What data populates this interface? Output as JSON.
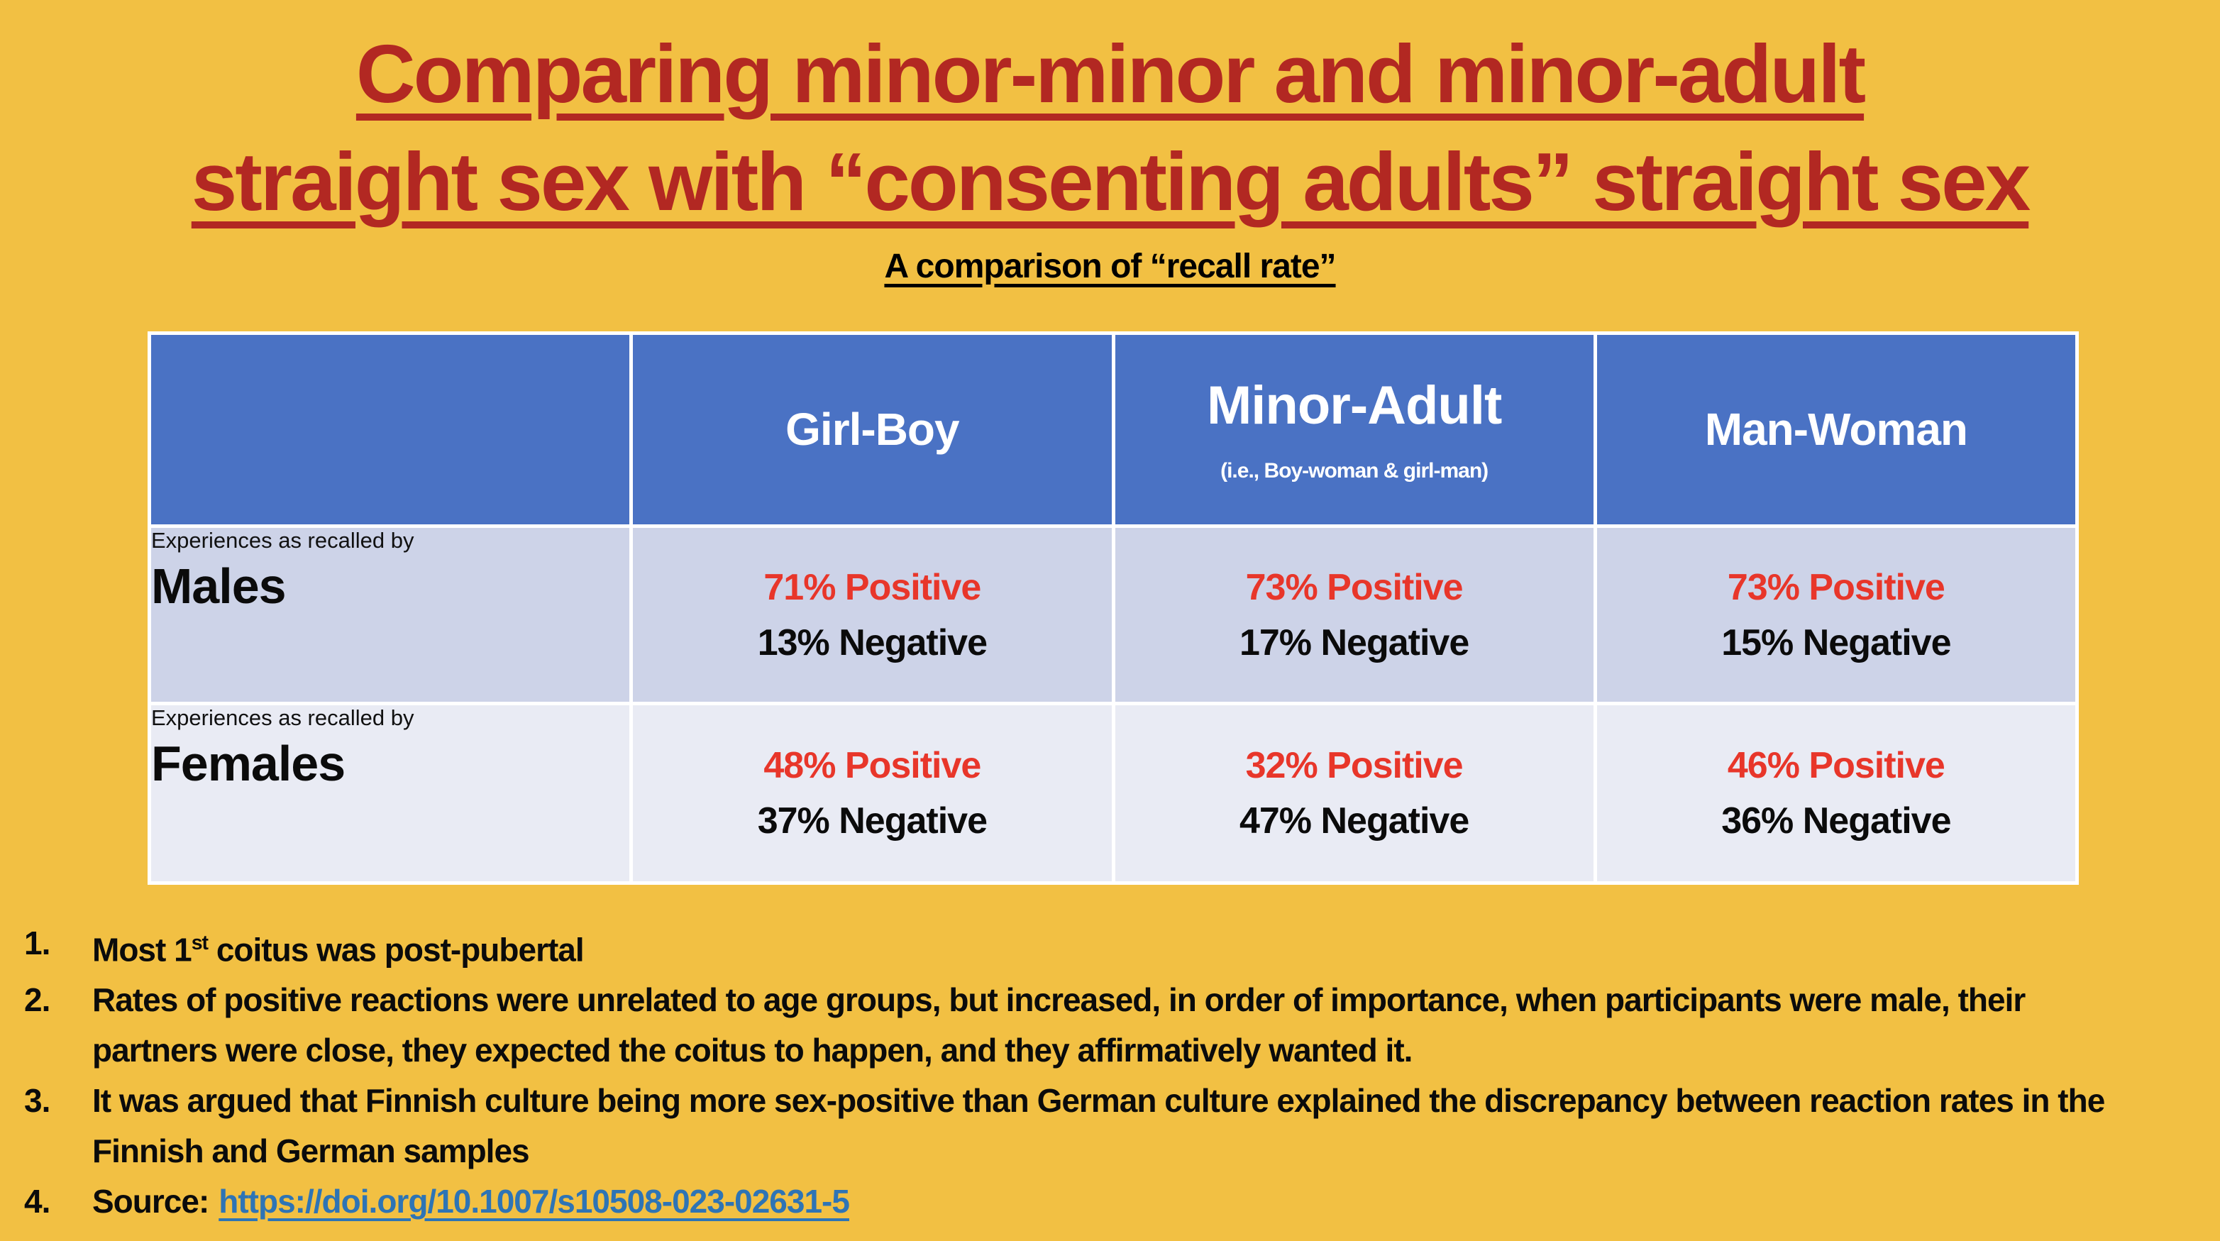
{
  "slide": {
    "title_line1": "Comparing minor-minor and minor-adult",
    "title_line2": "straight sex with “consenting adults” straight sex",
    "subtitle": "A comparison of “recall rate”",
    "colors": {
      "background": "#F2C043",
      "title_red": "#B22822",
      "header_blue": "#4A72C4",
      "row_males_bg": "#CDD3E8",
      "row_females_bg": "#E9EBF4",
      "positive_red": "#E8362A",
      "negative_black": "#0B0B0B",
      "link_blue": "#2E74B5",
      "table_border_white": "#FFFFFF"
    }
  },
  "table": {
    "columns": [
      {
        "label": "",
        "sub": ""
      },
      {
        "label": "Girl-Boy",
        "sub": ""
      },
      {
        "label": "Minor-Adult",
        "sub": "(i.e., Boy-woman & girl-man)"
      },
      {
        "label": "Man-Woman",
        "sub": ""
      }
    ],
    "rows": [
      {
        "prefix": "Experiences as recalled by",
        "group": "Males",
        "cells": [
          {
            "positive": "71% Positive",
            "negative": "13% Negative"
          },
          {
            "positive": "73% Positive",
            "negative": "17% Negative"
          },
          {
            "positive": "73% Positive",
            "negative": "15% Negative"
          }
        ]
      },
      {
        "prefix": "Experiences as recalled by",
        "group": "Females",
        "cells": [
          {
            "positive": "48% Positive",
            "negative": "37% Negative"
          },
          {
            "positive": "32% Positive",
            "negative": "47% Negative"
          },
          {
            "positive": "46% Positive",
            "negative": "36% Negative"
          }
        ]
      }
    ]
  },
  "notes": {
    "n1": {
      "num": "1.",
      "pre": "Most 1",
      "sup": "st",
      "post": " coitus was post-pubertal"
    },
    "n2": {
      "num": "2.",
      "text": "Rates of positive reactions were unrelated to age groups, but increased, in order of importance, when participants were male, their partners were close, they expected the coitus to happen, and they affirmatively wanted it."
    },
    "n3": {
      "num": "3.",
      "text": "It was argued that Finnish culture being more sex-positive than German culture explained the discrepancy between reaction rates in the Finnish and German samples"
    },
    "n4": {
      "num": "4.",
      "label": "Source:",
      "link_text": "https://doi.org/10.1007/s10508-023-02631-5"
    }
  }
}
